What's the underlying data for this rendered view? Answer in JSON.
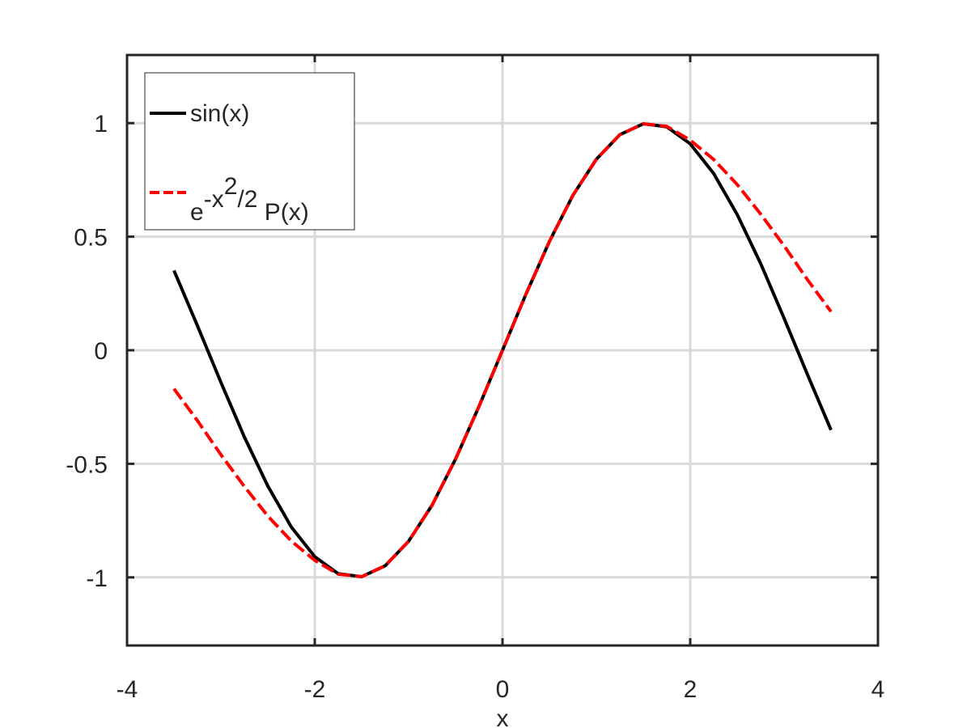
{
  "chart_data": {
    "type": "line",
    "xlabel": "x",
    "x": [
      -3.5,
      -3.25,
      -3.0,
      -2.75,
      -2.5,
      -2.25,
      -2.0,
      -1.75,
      -1.5,
      -1.25,
      -1.0,
      -0.75,
      -0.5,
      -0.25,
      0,
      0.25,
      0.5,
      0.75,
      1.0,
      1.25,
      1.5,
      1.75,
      2.0,
      2.25,
      2.5,
      2.75,
      3.0,
      3.25,
      3.5
    ],
    "series": [
      {
        "name": "sin(x)",
        "color": "#000000",
        "dash": false,
        "values": [
          0.351,
          0.108,
          -0.141,
          -0.382,
          -0.598,
          -0.778,
          -0.909,
          -0.984,
          -0.997,
          -0.949,
          -0.841,
          -0.682,
          -0.479,
          -0.247,
          0,
          0.247,
          0.479,
          0.682,
          0.841,
          0.949,
          0.997,
          0.984,
          0.909,
          0.778,
          0.598,
          0.382,
          0.141,
          -0.108,
          -0.351
        ]
      },
      {
        "name": "e^{-x^{2}/2} P(x)",
        "color": "#ff0000",
        "dash": true,
        "values": [
          -0.17,
          -0.31,
          -0.46,
          -0.6,
          -0.73,
          -0.84,
          -0.925,
          -0.986,
          -0.997,
          -0.949,
          -0.841,
          -0.682,
          -0.479,
          -0.247,
          0,
          0.247,
          0.479,
          0.682,
          0.841,
          0.949,
          0.997,
          0.986,
          0.925,
          0.84,
          0.73,
          0.6,
          0.46,
          0.31,
          0.17
        ]
      }
    ],
    "xlim": [
      -4,
      4
    ],
    "xticks": [
      -4,
      -2,
      0,
      2,
      4
    ],
    "ylim": [
      -1.3,
      1.3
    ],
    "yticks": [
      -1,
      -0.5,
      0,
      0.5,
      1
    ],
    "grid": true,
    "legend": "upper left"
  }
}
